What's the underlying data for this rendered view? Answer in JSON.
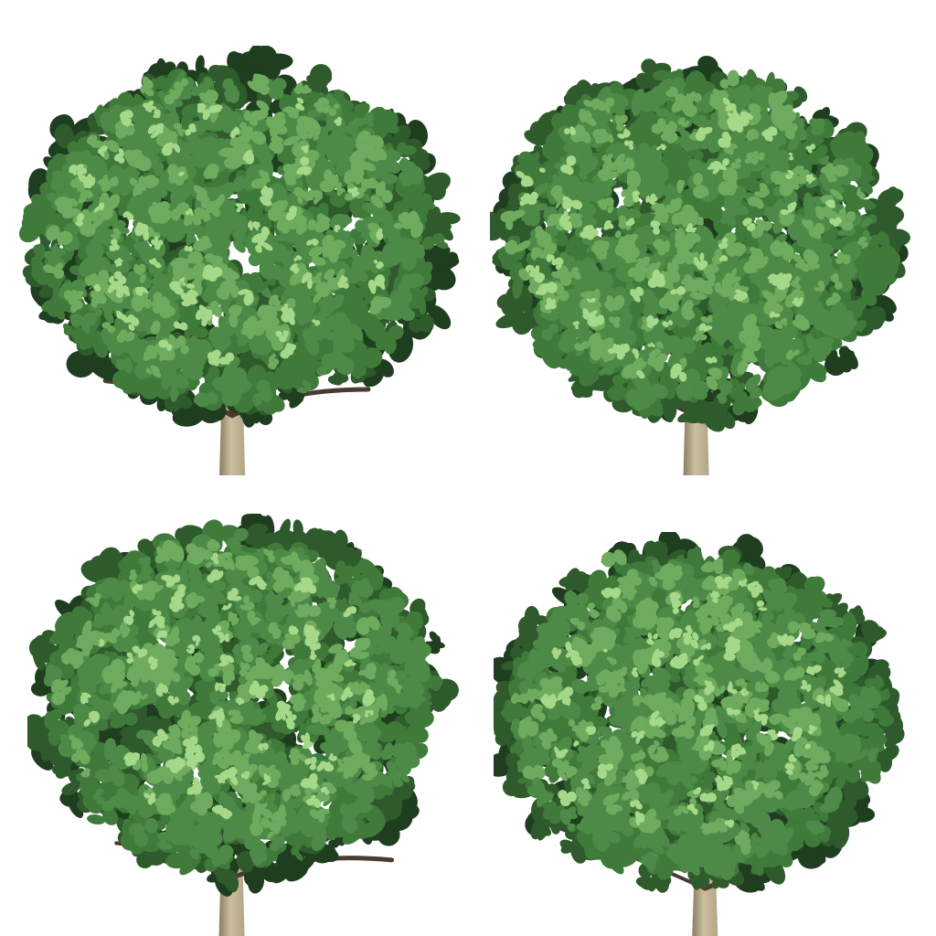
{
  "scene": {
    "description_items": [
      "tree",
      "tree",
      "tree",
      "tree"
    ],
    "background_color": "#ffffff"
  },
  "colors": {
    "leaf_dark": "#2f5a2c",
    "leaf_mid": "#3f7a3b",
    "leaf_base": "#4d8a47",
    "leaf_light": "#6fab5e",
    "leaf_highlight": "#a6d88a",
    "leaf_shadow": "#1f3d1f",
    "branch": "#4a3b30",
    "trunk_light": "#cbbf9f",
    "trunk_mid": "#b3a585",
    "trunk_dark": "#8a7c62"
  }
}
